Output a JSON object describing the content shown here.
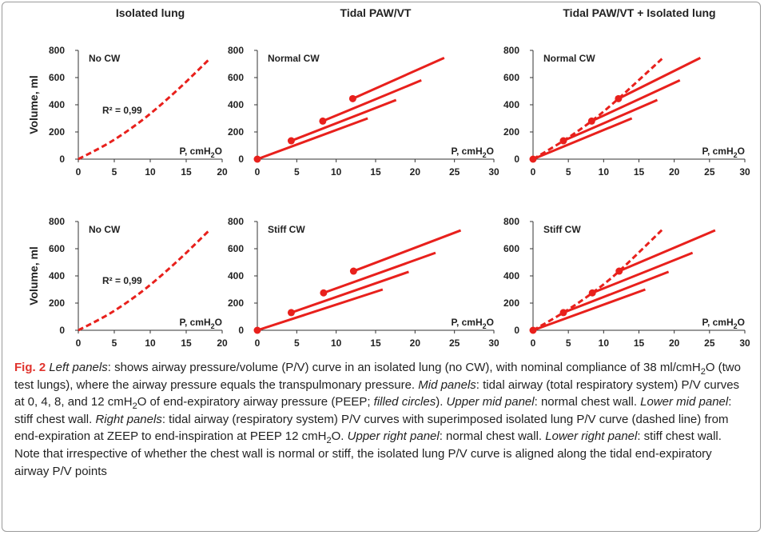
{
  "figure": {
    "column_titles": [
      "Isolated lung",
      "Tidal PAW/VT",
      "Tidal PAW/VT + Isolated lung"
    ],
    "y_axis_label": "Volume, ml",
    "x_axis_label_prefix": "P, cmH",
    "x_axis_label_sub": "2",
    "x_axis_label_suffix": "O",
    "r_squared_label": "R² = 0,99",
    "line_color": "#e8201c"
  },
  "chart_data": [
    {
      "type": "line",
      "panel": "Top left",
      "label": "No CW",
      "xlim": [
        0,
        20
      ],
      "ylim": [
        0,
        800
      ],
      "xticks": [
        0,
        5,
        10,
        15,
        20
      ],
      "yticks": [
        0,
        200,
        400,
        600,
        800
      ],
      "annotation": "R² = 0,99",
      "series": [
        {
          "style": "dashed",
          "points": [
            [
              0,
              0
            ],
            [
              4.6,
              130
            ],
            [
              9.2,
              300
            ],
            [
              13.8,
              510
            ],
            [
              18.3,
              740
            ]
          ]
        }
      ],
      "circles": []
    },
    {
      "type": "line",
      "panel": "Top middle",
      "label": "Normal CW",
      "xlim": [
        0,
        30
      ],
      "ylim": [
        0,
        800
      ],
      "xticks": [
        0,
        5,
        10,
        15,
        20,
        25,
        30
      ],
      "yticks": [
        0,
        200,
        400,
        600,
        800
      ],
      "series": [
        {
          "style": "solid",
          "points": [
            [
              0,
              0
            ],
            [
              14,
              300
            ]
          ]
        },
        {
          "style": "solid",
          "points": [
            [
              4.3,
              135
            ],
            [
              17.6,
              435
            ]
          ]
        },
        {
          "style": "solid",
          "points": [
            [
              8.3,
              280
            ],
            [
              20.8,
              580
            ]
          ]
        },
        {
          "style": "solid",
          "points": [
            [
              12.1,
              445
            ],
            [
              23.7,
              745
            ]
          ]
        }
      ],
      "circles": [
        [
          0,
          0
        ],
        [
          4.3,
          135
        ],
        [
          8.3,
          280
        ],
        [
          12.1,
          445
        ]
      ]
    },
    {
      "type": "line",
      "panel": "Top right",
      "label": "Normal CW",
      "xlim": [
        0,
        30
      ],
      "ylim": [
        0,
        800
      ],
      "xticks": [
        0,
        5,
        10,
        15,
        20,
        25,
        30
      ],
      "yticks": [
        0,
        200,
        400,
        600,
        800
      ],
      "series": [
        {
          "style": "solid",
          "points": [
            [
              0,
              0
            ],
            [
              14,
              300
            ]
          ]
        },
        {
          "style": "solid",
          "points": [
            [
              4.3,
              135
            ],
            [
              17.6,
              435
            ]
          ]
        },
        {
          "style": "solid",
          "points": [
            [
              8.3,
              280
            ],
            [
              20.8,
              580
            ]
          ]
        },
        {
          "style": "solid",
          "points": [
            [
              12.1,
              445
            ],
            [
              23.7,
              745
            ]
          ]
        },
        {
          "style": "dashed",
          "points": [
            [
              0,
              0
            ],
            [
              4.3,
              135
            ],
            [
              8.3,
              280
            ],
            [
              12.1,
              445
            ],
            [
              18.3,
              740
            ]
          ]
        }
      ],
      "circles": [
        [
          0,
          0
        ],
        [
          4.3,
          135
        ],
        [
          8.3,
          280
        ],
        [
          12.1,
          445
        ]
      ]
    },
    {
      "type": "line",
      "panel": "Bottom left",
      "label": "No CW",
      "xlim": [
        0,
        20
      ],
      "ylim": [
        0,
        800
      ],
      "xticks": [
        0,
        5,
        10,
        15,
        20
      ],
      "yticks": [
        0,
        200,
        400,
        600,
        800
      ],
      "annotation": "R² = 0,99",
      "series": [
        {
          "style": "dashed",
          "points": [
            [
              0,
              0
            ],
            [
              4.6,
              130
            ],
            [
              9.2,
              300
            ],
            [
              13.8,
              510
            ],
            [
              18.3,
              740
            ]
          ]
        }
      ],
      "circles": []
    },
    {
      "type": "line",
      "panel": "Bottom middle",
      "label": "Stiff CW",
      "xlim": [
        0,
        30
      ],
      "ylim": [
        0,
        800
      ],
      "xticks": [
        0,
        5,
        10,
        15,
        20,
        25,
        30
      ],
      "yticks": [
        0,
        200,
        400,
        600,
        800
      ],
      "series": [
        {
          "style": "solid",
          "points": [
            [
              0,
              0
            ],
            [
              15.9,
              300
            ]
          ]
        },
        {
          "style": "solid",
          "points": [
            [
              4.3,
              130
            ],
            [
              19.2,
              430
            ]
          ]
        },
        {
          "style": "solid",
          "points": [
            [
              8.4,
              275
            ],
            [
              22.6,
              570
            ]
          ]
        },
        {
          "style": "solid",
          "points": [
            [
              12.2,
              435
            ],
            [
              25.8,
              735
            ]
          ]
        }
      ],
      "circles": [
        [
          0,
          0
        ],
        [
          4.3,
          130
        ],
        [
          8.4,
          275
        ],
        [
          12.2,
          435
        ]
      ]
    },
    {
      "type": "line",
      "panel": "Bottom right",
      "label": "Stiff CW",
      "xlim": [
        0,
        30
      ],
      "ylim": [
        0,
        800
      ],
      "xticks": [
        0,
        5,
        10,
        15,
        20,
        25,
        30
      ],
      "yticks": [
        0,
        200,
        400,
        600,
        800
      ],
      "series": [
        {
          "style": "solid",
          "points": [
            [
              0,
              0
            ],
            [
              15.9,
              300
            ]
          ]
        },
        {
          "style": "solid",
          "points": [
            [
              4.3,
              130
            ],
            [
              19.2,
              430
            ]
          ]
        },
        {
          "style": "solid",
          "points": [
            [
              8.4,
              275
            ],
            [
              22.6,
              570
            ]
          ]
        },
        {
          "style": "solid",
          "points": [
            [
              12.2,
              435
            ],
            [
              25.8,
              735
            ]
          ]
        },
        {
          "style": "dashed",
          "points": [
            [
              0,
              0
            ],
            [
              4.3,
              130
            ],
            [
              8.4,
              275
            ],
            [
              12.2,
              435
            ],
            [
              18.3,
              740
            ]
          ]
        }
      ],
      "circles": [
        [
          0,
          0
        ],
        [
          4.3,
          130
        ],
        [
          8.4,
          275
        ],
        [
          12.2,
          435
        ]
      ]
    }
  ],
  "caption": {
    "lead": "Fig. 2",
    "segments": [
      {
        "text": "Left panels",
        "italic": true
      },
      {
        "text": ": shows airway pressure/volume (P/V) curve in an isolated lung (no CW), with nominal compliance of 38 ml/cmH"
      },
      {
        "text": "2",
        "sub": true
      },
      {
        "text": "O (two test lungs), where the airway pressure equals the transpulmonary pressure. "
      },
      {
        "text": "Mid panels",
        "italic": true
      },
      {
        "text": ": tidal airway (total respiratory system) P/V curves at 0, 4, 8, and 12 cmH"
      },
      {
        "text": "2",
        "sub": true
      },
      {
        "text": "O of end-expiratory airway pressure (PEEP; "
      },
      {
        "text": "filled circles",
        "italic": true
      },
      {
        "text": "). "
      },
      {
        "text": "Upper mid panel",
        "italic": true
      },
      {
        "text": ": normal chest wall. "
      },
      {
        "text": "Lower mid panel",
        "italic": true
      },
      {
        "text": ": stiff chest wall. "
      },
      {
        "text": "Right panels",
        "italic": true
      },
      {
        "text": ": tidal airway (respiratory system) P/V curves with superimposed isolated lung P/V curve (dashed line) from end-expiration at ZEEP to end-inspiration at PEEP 12 cmH"
      },
      {
        "text": "2",
        "sub": true
      },
      {
        "text": "O. "
      },
      {
        "text": "Upper right panel",
        "italic": true
      },
      {
        "text": ": normal chest wall. "
      },
      {
        "text": "Lower right panel",
        "italic": true
      },
      {
        "text": ": stiff chest wall. Note that irrespective of whether the chest wall is normal or stiff, the isolated lung P/V curve is aligned along the tidal end-expiratory airway P/V points"
      }
    ]
  }
}
